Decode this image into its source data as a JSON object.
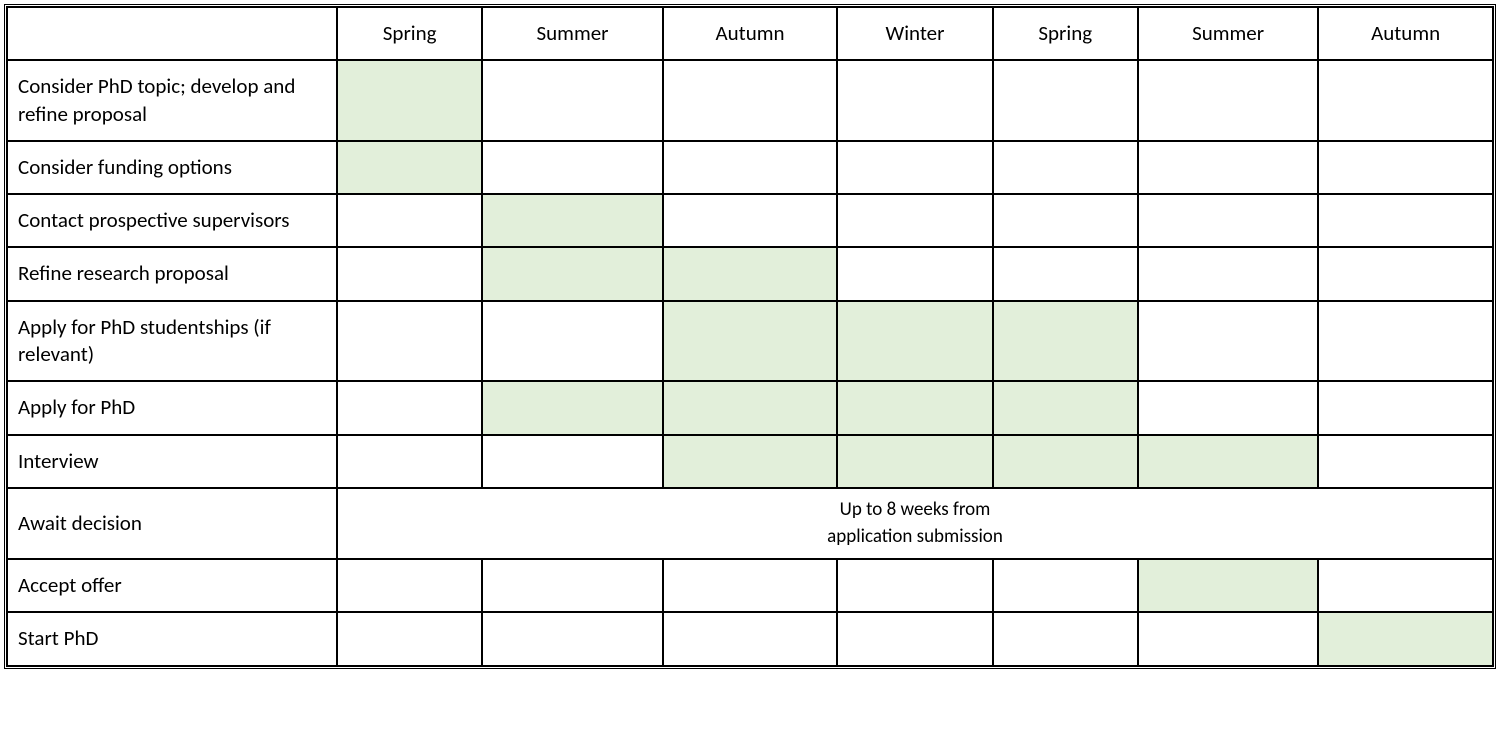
{
  "table": {
    "type": "table",
    "columns": [
      "",
      "Spring",
      "Summer",
      "Autumn",
      "Winter",
      "Spring",
      "Summer",
      "Autumn"
    ],
    "rows": [
      {
        "label": "Consider PhD topic; develop and refine proposal",
        "filled": [
          true,
          false,
          false,
          false,
          false,
          false,
          false
        ]
      },
      {
        "label": "Consider funding options",
        "filled": [
          true,
          false,
          false,
          false,
          false,
          false,
          false
        ]
      },
      {
        "label": "Contact prospective supervisors",
        "filled": [
          false,
          true,
          false,
          false,
          false,
          false,
          false
        ]
      },
      {
        "label": "Refine research proposal",
        "filled": [
          false,
          true,
          true,
          false,
          false,
          false,
          false
        ]
      },
      {
        "label": "Apply for PhD studentships (if relevant)",
        "filled": [
          false,
          false,
          true,
          true,
          true,
          false,
          false
        ]
      },
      {
        "label": "Apply for PhD",
        "filled": [
          false,
          true,
          true,
          true,
          true,
          false,
          false
        ]
      },
      {
        "label": "Interview",
        "filled": [
          false,
          false,
          true,
          true,
          true,
          true,
          false
        ]
      },
      {
        "label": "Await decision",
        "span_text": "Up to 8 weeks from\napplication submission",
        "span_cols": 7
      },
      {
        "label": "Accept offer",
        "filled": [
          false,
          false,
          false,
          false,
          false,
          true,
          false
        ]
      },
      {
        "label": "Start PhD",
        "filled": [
          false,
          false,
          false,
          false,
          false,
          false,
          true
        ]
      }
    ],
    "colors": {
      "filled_bg": "#e2efda",
      "border": "#000000",
      "text": "#000000",
      "background": "#ffffff"
    },
    "label_fontsize": 21,
    "span_fontsize": 19
  }
}
